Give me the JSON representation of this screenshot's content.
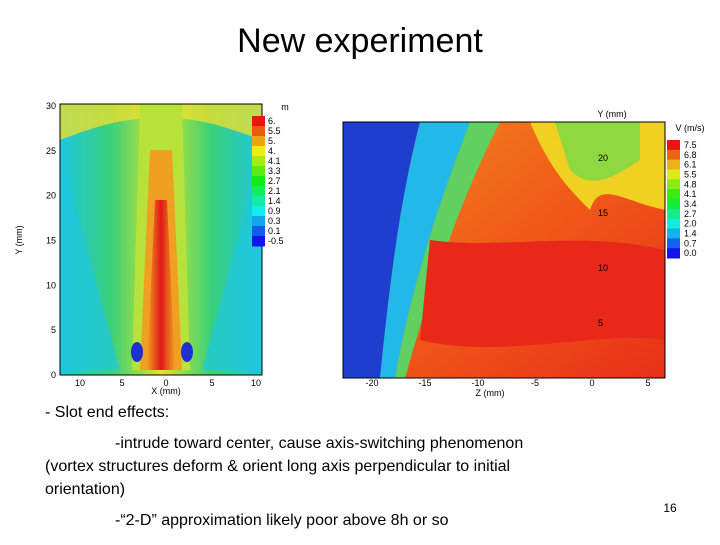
{
  "title": "New experiment",
  "plots": [
    {
      "x_label": "X (mm)",
      "y_label": "Y (mm)",
      "colorbar_title": "m",
      "xticks": [
        "10",
        "5",
        "0",
        "5",
        "10"
      ],
      "yticks": [
        "0",
        "5",
        "10",
        "15",
        "20",
        "25",
        "30"
      ],
      "colorbar_labels": [
        "6.",
        "5.5",
        "5.",
        "4.",
        "4.1",
        "3.3",
        "2.7",
        "2.1",
        "1.4",
        "0.9",
        "0.3",
        "0.1",
        "-0.5"
      ]
    },
    {
      "x_label": "Z (mm)",
      "y_label": "Y (mm)",
      "colorbar_title": "V (m/s)",
      "xticks": [
        "-20",
        "-15",
        "-10",
        "-5",
        "0",
        "5"
      ],
      "yticks": [
        "5",
        "10",
        "15",
        "20"
      ],
      "colorbar_labels": [
        "7.5",
        "6.8",
        "6.1",
        "5.5",
        "4.8",
        "4.1",
        "3.4",
        "2.7",
        "2.0",
        "1.4",
        "0.7",
        "0.0"
      ]
    }
  ],
  "bullets": [
    "- Slot end effects:",
    "-intrude toward center, cause axis-switching phenomenon",
    "(vortex structures deform & orient long axis perpendicular to initial",
    "orientation)",
    "-“2-D” approximation likely poor above 8h or so"
  ],
  "page_number": "16"
}
